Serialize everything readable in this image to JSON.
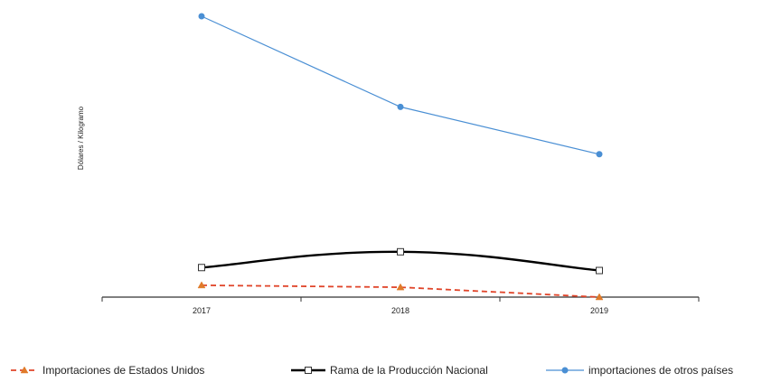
{
  "chart_data": {
    "type": "line",
    "title": "",
    "xlabel": "",
    "ylabel": "Dólares / Kilogramo",
    "categories": [
      "2017",
      "2018",
      "2019"
    ],
    "ylim": [
      0,
      31
    ],
    "grid": false,
    "legend_position": "bottom",
    "series": [
      {
        "name": "Importaciones  de Estados Unidos",
        "values": [
          1.2,
          1.0,
          0.0
        ],
        "color": "#e0452a",
        "marker_color": "#e07b2a",
        "line_style": "dashed",
        "marker": "triangle"
      },
      {
        "name": "Rama de la Producción Nacional",
        "values": [
          3.0,
          4.6,
          2.7
        ],
        "color": "#000000",
        "marker_color": "#ffffff",
        "line_style": "solid",
        "marker": "square"
      },
      {
        "name": "importaciones  de otros países",
        "values": [
          28.5,
          19.3,
          14.5
        ],
        "color": "#4a8fd4",
        "marker_color": "#4a8fd4",
        "line_style": "solid",
        "marker": "circle"
      }
    ]
  }
}
